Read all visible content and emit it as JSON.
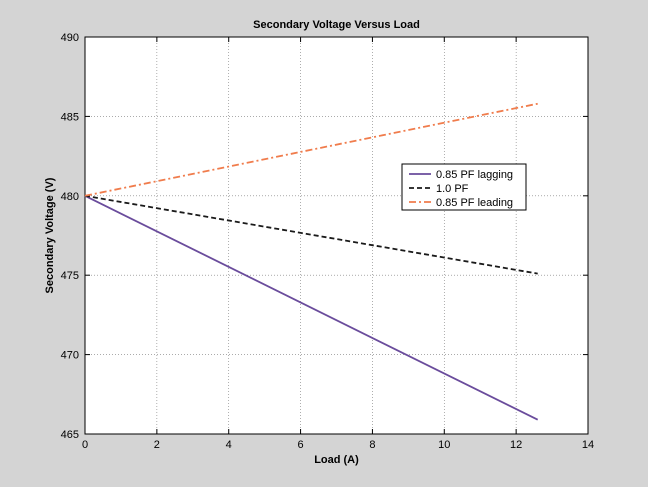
{
  "chart_data": {
    "type": "line",
    "title": "Secondary Voltage Versus Load",
    "xlabel": "Load (A)",
    "ylabel": "Secondary Voltage (V)",
    "xlim": [
      0,
      14
    ],
    "ylim": [
      465,
      490
    ],
    "xticks": [
      0,
      2,
      4,
      6,
      8,
      10,
      12,
      14
    ],
    "yticks": [
      465,
      470,
      475,
      480,
      485,
      490
    ],
    "grid": true,
    "legend_position": "right",
    "series": [
      {
        "name": "0.85 PF lagging",
        "x": [
          0,
          12.6
        ],
        "y": [
          480.0,
          465.9
        ],
        "color": "#6a4c9c",
        "style": "solid"
      },
      {
        "name": "1.0 PF",
        "x": [
          0,
          12.6
        ],
        "y": [
          480.0,
          475.1
        ],
        "color": "#1a1a1a",
        "style": "dashed"
      },
      {
        "name": "0.85 PF leading",
        "x": [
          0,
          12.6
        ],
        "y": [
          480.0,
          485.8
        ],
        "color": "#f07c4c",
        "style": "dashdot"
      }
    ]
  }
}
